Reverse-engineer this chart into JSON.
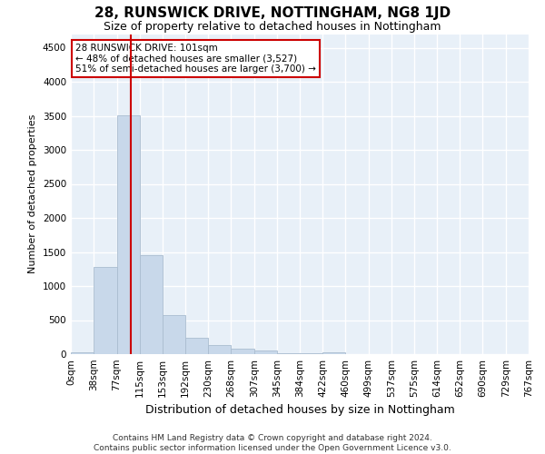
{
  "title": "28, RUNSWICK DRIVE, NOTTINGHAM, NG8 1JD",
  "subtitle": "Size of property relative to detached houses in Nottingham",
  "xlabel": "Distribution of detached houses by size in Nottingham",
  "ylabel": "Number of detached properties",
  "footer_line1": "Contains HM Land Registry data © Crown copyright and database right 2024.",
  "footer_line2": "Contains public sector information licensed under the Open Government Licence v3.0.",
  "annotation_line1": "28 RUNSWICK DRIVE: 101sqm",
  "annotation_line2": "← 48% of detached houses are smaller (3,527)",
  "annotation_line3": "51% of semi-detached houses are larger (3,700) →",
  "bar_color": "#c8d8ea",
  "bar_edge_color": "#aabdd0",
  "vline_color": "#cc0000",
  "vline_x": 101,
  "bin_edges": [
    0,
    38,
    77,
    115,
    153,
    192,
    230,
    268,
    307,
    345,
    384,
    422,
    460,
    499,
    537,
    575,
    614,
    652,
    690,
    729,
    767
  ],
  "bar_heights": [
    25,
    1285,
    3510,
    1460,
    575,
    240,
    130,
    75,
    50,
    20,
    10,
    30,
    0,
    0,
    0,
    0,
    0,
    0,
    0,
    0
  ],
  "ylim": [
    0,
    4700
  ],
  "yticks": [
    0,
    500,
    1000,
    1500,
    2000,
    2500,
    3000,
    3500,
    4000,
    4500
  ],
  "background_color": "#ffffff",
  "plot_bg_color": "#e8f0f8",
  "title_fontsize": 11,
  "subtitle_fontsize": 9,
  "xlabel_fontsize": 9,
  "ylabel_fontsize": 8,
  "tick_fontsize": 7.5,
  "footer_fontsize": 6.5
}
